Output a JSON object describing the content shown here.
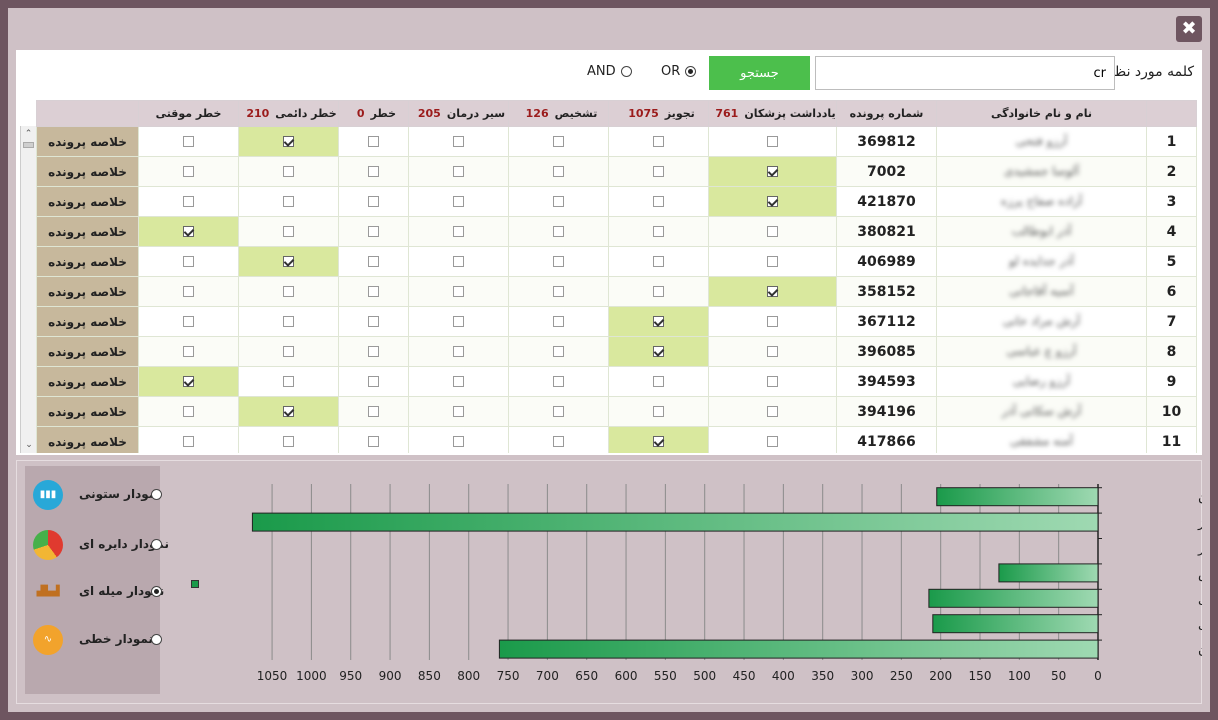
{
  "window": {
    "close_label": "✖"
  },
  "search": {
    "label": "کلمه مورد نظ",
    "value": "cr",
    "button_label": "جستجو",
    "or_label": "OR",
    "and_label": "AND",
    "mode": "OR"
  },
  "table": {
    "columns": [
      {
        "label": "نام و نام خانوادگی",
        "count": ""
      },
      {
        "label": "شماره پرونده",
        "count": ""
      },
      {
        "label": "یادداشت پزشکان",
        "count": "761"
      },
      {
        "label": "تجویز",
        "count": "1075"
      },
      {
        "label": "تشخیص",
        "count": "126"
      },
      {
        "label": "سیر درمان",
        "count": "205"
      },
      {
        "label": "خطر",
        "count": "0"
      },
      {
        "label": "خطر دائمی",
        "count": "210"
      },
      {
        "label": "خطر موقتی",
        "count": ""
      }
    ],
    "action_label": "خلاصه پرونده",
    "rows": [
      {
        "idx": "1",
        "name": "آرزو فتحی",
        "file": "369812",
        "checks": [
          0,
          0,
          0,
          0,
          0,
          1,
          0
        ]
      },
      {
        "idx": "2",
        "name": "آلوسا جمشیدی",
        "file": "7002",
        "checks": [
          1,
          0,
          0,
          0,
          0,
          0,
          0
        ]
      },
      {
        "idx": "3",
        "name": "آزاده صفاح پرزه",
        "file": "421870",
        "checks": [
          1,
          0,
          0,
          0,
          0,
          0,
          0
        ]
      },
      {
        "idx": "4",
        "name": "آذر ابوطالب",
        "file": "380821",
        "checks": [
          0,
          0,
          0,
          0,
          0,
          0,
          1
        ]
      },
      {
        "idx": "5",
        "name": "آذر جدایده لو",
        "file": "406989",
        "checks": [
          0,
          0,
          0,
          0,
          0,
          1,
          0
        ]
      },
      {
        "idx": "6",
        "name": "آسیه آقاجانی",
        "file": "358152",
        "checks": [
          1,
          0,
          0,
          0,
          0,
          0,
          0
        ]
      },
      {
        "idx": "7",
        "name": "آرش مراد خانی",
        "file": "367112",
        "checks": [
          0,
          1,
          0,
          0,
          0,
          0,
          0
        ]
      },
      {
        "idx": "8",
        "name": "آرزو ع عباسی",
        "file": "396085",
        "checks": [
          0,
          1,
          0,
          0,
          0,
          0,
          0
        ]
      },
      {
        "idx": "9",
        "name": "آرزو رضایی",
        "file": "394593",
        "checks": [
          0,
          0,
          0,
          0,
          0,
          0,
          1
        ]
      },
      {
        "idx": "10",
        "name": "آرش سکانی آذر",
        "file": "394196",
        "checks": [
          0,
          0,
          0,
          0,
          0,
          1,
          0
        ]
      },
      {
        "idx": "11",
        "name": "آمنه مشفقی",
        "file": "417866",
        "checks": [
          0,
          1,
          0,
          0,
          0,
          0,
          0
        ]
      }
    ]
  },
  "chart_options": [
    {
      "label": "نمودار ستونی",
      "icon": "column-chart-icon",
      "selected": false
    },
    {
      "label": "نمودار دایره ای",
      "icon": "pie-chart-icon",
      "selected": false
    },
    {
      "label": "نمودار میله ای",
      "icon": "bar-chart-icon",
      "selected": true
    },
    {
      "label": "نمودار خطی",
      "icon": "line-chart-icon",
      "selected": false
    }
  ],
  "chart_data": {
    "type": "bar",
    "orientation": "horizontal",
    "x_reversed": true,
    "categories": [
      "سیر درمان",
      "تجویز",
      "خطر",
      "تشخیص",
      "خطر موقتی",
      "خطر دائمی",
      "یادداشت پزشکان"
    ],
    "values": [
      205,
      1075,
      0,
      126,
      215,
      210,
      761
    ],
    "xlim": [
      0,
      1075
    ],
    "xticks": [
      0,
      50,
      100,
      150,
      200,
      250,
      300,
      350,
      400,
      450,
      500,
      550,
      600,
      650,
      700,
      750,
      800,
      850,
      900,
      950,
      1000,
      1050
    ],
    "grid": true,
    "bar_color": "#1a9a4a"
  }
}
